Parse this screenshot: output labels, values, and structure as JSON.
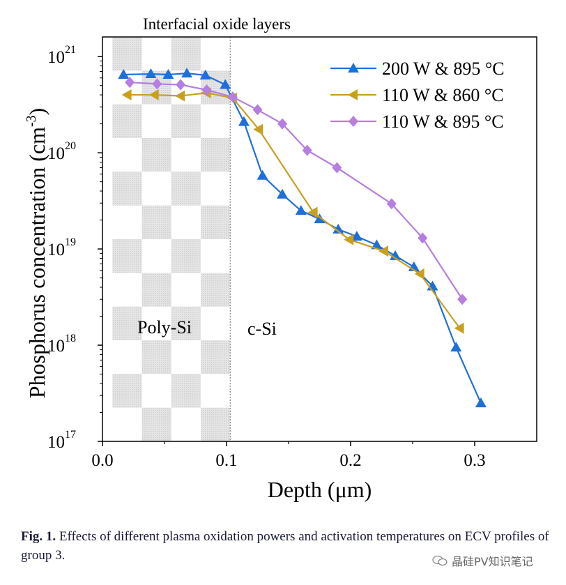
{
  "chart_data": {
    "type": "line",
    "title": "",
    "xlabel": "Depth (μm)",
    "ylabel": "Phosphorus concentration (cm",
    "ylabel_exp": "-3",
    "ylabel_close": ")",
    "yscale": "log",
    "xlim": [
      0.0,
      0.35
    ],
    "ylim": [
      1e+17,
      1.6e+21
    ],
    "x_ticks": [
      0.0,
      0.1,
      0.2,
      0.3
    ],
    "x_tick_labels": [
      "0.0",
      "0.1",
      "0.2",
      "0.3"
    ],
    "y_ticks": [
      1e+17,
      1e+18,
      1e+19,
      1e+20,
      1e+21
    ],
    "y_tick_base": "10",
    "y_tick_exponents": [
      "17",
      "18",
      "19",
      "20",
      "21"
    ],
    "annotations": {
      "top": "Interfacial oxide layers",
      "region_left": "Poly-Si",
      "region_right": "c-Si"
    },
    "polysi_region_x": [
      0.008,
      0.103
    ],
    "legend_position": "top-right",
    "series": [
      {
        "name": "200 W & 895 °C",
        "color": "#1f6fd8",
        "marker": "triangle-up",
        "x": [
          0.017,
          0.039,
          0.053,
          0.068,
          0.083,
          0.099,
          0.114,
          0.129,
          0.145,
          0.16,
          0.175,
          0.19,
          0.205,
          0.221,
          0.236,
          0.251,
          0.266,
          0.285,
          0.305
        ],
        "y": [
          6.5e+20,
          6.6e+20,
          6.5e+20,
          6.7e+20,
          6.4e+20,
          5.1e+20,
          2.1e+20,
          5.8e+19,
          3.7e+19,
          2.5e+19,
          2.05e+19,
          1.6e+19,
          1.35e+19,
          1.1e+19,
          8.5e+18,
          6.5e+18,
          4.1e+18,
          9.5e+17,
          2.5e+17
        ]
      },
      {
        "name": "110 W & 860 °C",
        "color": "#c8a020",
        "marker": "triangle-left",
        "x": [
          0.02,
          0.042,
          0.063,
          0.084,
          0.105,
          0.126,
          0.17,
          0.199,
          0.227,
          0.256,
          0.288
        ],
        "y": [
          4e+20,
          4e+20,
          3.9e+20,
          4.2e+20,
          3.7e+20,
          1.75e+20,
          2.4e+19,
          1.25e+19,
          9.5e+18,
          5.5e+18,
          1.5e+18
        ]
      },
      {
        "name": "110 W & 895 °C",
        "color": "#b57ee0",
        "marker": "diamond",
        "x": [
          0.022,
          0.044,
          0.063,
          0.084,
          0.105,
          0.125,
          0.145,
          0.165,
          0.189,
          0.233,
          0.258,
          0.29
        ],
        "y": [
          5.4e+20,
          5.2e+20,
          5.1e+20,
          4.5e+20,
          3.8e+20,
          2.8e+20,
          2e+20,
          1.06e+20,
          7e+19,
          2.95e+19,
          1.3e+19,
          3e+18
        ]
      }
    ]
  },
  "caption": {
    "label": "Fig. 1.",
    "text": " Effects of different plasma oxidation powers and activation temperatures on ECV profiles of group 3."
  },
  "watermark": {
    "text": "晶硅PV知识笔记"
  }
}
